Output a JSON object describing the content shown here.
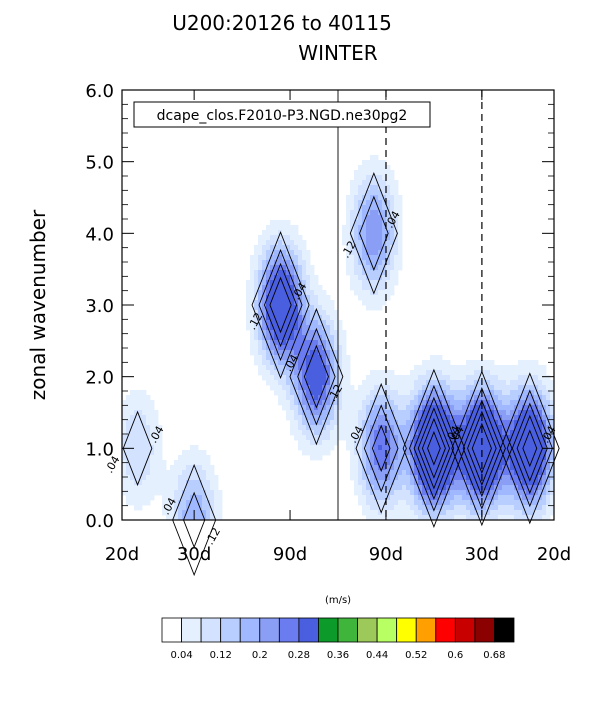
{
  "chart_data": {
    "type": "contour",
    "title_line1": "U200:20126 to 40115",
    "title_line2": "WINTER",
    "inset_label": "dcape_clos.F2010-P3.NGD.ne30pg2",
    "ylabel": "zonal wavenumber",
    "ylim": [
      0,
      6
    ],
    "yticks": [
      "0.0",
      "1.0",
      "2.0",
      "3.0",
      "4.0",
      "5.0",
      "6.0"
    ],
    "xticks": [
      "20d",
      "30d",
      "90d",
      "90d",
      "30d",
      "20d"
    ],
    "x_domain": [
      -0.05,
      0.05
    ],
    "xtick_frequencies": [
      -0.05,
      -0.0333,
      -0.0111,
      0.0111,
      0.0333,
      0.05
    ],
    "dashed_lines_at": [
      0.0111,
      0.0333
    ],
    "contour_interval": 0.04,
    "contour_labels": [
      ".04",
      ".04",
      ".04",
      ".04",
      ".04",
      ".04",
      ".04",
      ".04",
      ".04",
      ".04",
      ".12",
      ".12",
      ".12",
      ".12"
    ],
    "peaks": [
      {
        "x": -0.0464,
        "y": 1.0,
        "value": 0.06
      },
      {
        "x": -0.0333,
        "y": 0.0,
        "value": 0.1
      },
      {
        "x": -0.0133,
        "y": 3.0,
        "value": 0.2
      },
      {
        "x": -0.005,
        "y": 2.0,
        "value": 0.16
      },
      {
        "x": 0.0083,
        "y": 4.0,
        "value": 0.12
      },
      {
        "x": 0.01,
        "y": 1.0,
        "value": 0.14
      },
      {
        "x": 0.0222,
        "y": 1.0,
        "value": 0.26
      },
      {
        "x": 0.0333,
        "y": 1.0,
        "value": 0.24
      },
      {
        "x": 0.0444,
        "y": 1.0,
        "value": 0.22
      }
    ],
    "colorbar": {
      "units": "(m/s)",
      "colors": [
        "#ffffff",
        "#e5f0ff",
        "#d3e2ff",
        "#b8ceff",
        "#a0b8ff",
        "#8b9ef5",
        "#6a7cf0",
        "#4a5ee0",
        "#0c9a2a",
        "#3fb53c",
        "#9dc85a",
        "#b8ff63",
        "#ffff00",
        "#ffa000",
        "#ff0000",
        "#c80000",
        "#8b0000",
        "#000000"
      ],
      "tick_labels": [
        "0.04",
        "0.12",
        "0.2",
        "0.28",
        "0.36",
        "0.44",
        "0.52",
        "0.6",
        "0.68"
      ]
    }
  }
}
